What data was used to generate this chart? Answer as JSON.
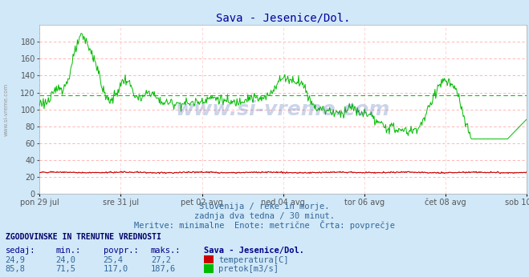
{
  "title": "Sava - Jesenice/Dol.",
  "title_color": "#000099",
  "bg_color": "#d0e8f8",
  "plot_bg_color": "#ffffff",
  "grid_h_color": "#ffaaaa",
  "grid_v_color": "#ffcccc",
  "avg_flow_color": "#00cc00",
  "avg_temp_color": "#cc0000",
  "xlabel_ticks": [
    "pon 29 jul",
    "sre 31 jul",
    "pet 02 avg",
    "ned 04 avg",
    "tor 06 avg",
    "čet 08 avg",
    "sob 10 avg"
  ],
  "ylabel_ticks": [
    0,
    20,
    40,
    60,
    80,
    100,
    120,
    140,
    160,
    180
  ],
  "ymin": 0,
  "ymax": 200,
  "temp_color": "#cc0000",
  "flow_color": "#00bb00",
  "watermark": "www.si-vreme.com",
  "subtitle1": "Slovenija / reke in morje.",
  "subtitle2": "zadnja dva tedna / 30 minut.",
  "subtitle3": "Meritve: minimalne  Enote: metrične  Črta: povprečje",
  "table_header": "ZGODOVINSKE IN TRENUTNE VREDNOSTI",
  "col_headers": [
    "sedaj:",
    "min.:",
    "povpr.:",
    "maks.:"
  ],
  "legend_header": "Sava - Jesenice/Dol.",
  "temp_row": [
    "24,9",
    "24,0",
    "25,4",
    "27,2"
  ],
  "flow_row": [
    "85,8",
    "71,5",
    "117,0",
    "187,6"
  ],
  "temp_label": "temperatura[C]",
  "flow_label": "pretok[m3/s]",
  "temp_avg": 25.4,
  "flow_avg": 117.0,
  "n_points": 672,
  "temp_min": 24.0,
  "temp_max": 27.2,
  "flow_min": 71.5,
  "flow_max": 187.6,
  "temp_current": 24.9,
  "flow_current": 85.8,
  "side_label": "www.si-vreme.com"
}
